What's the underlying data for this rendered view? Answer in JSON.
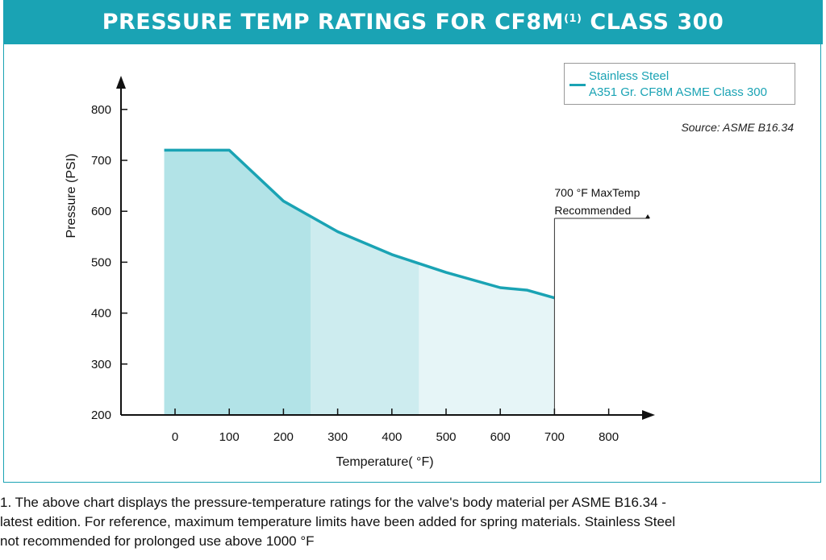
{
  "header": {
    "title_main": "PRESSURE TEMP RATINGS FOR CF8M",
    "title_sup": "(1)",
    "title_end": "CLASS 300"
  },
  "legend": {
    "line1": "Stainless Steel",
    "line2": "A351 Gr. CF8M ASME Class 300"
  },
  "source": "Source: ASME B16.34",
  "annotation": {
    "line1": "700 °F MaxTemp",
    "line2": "Recommended"
  },
  "footnote": {
    "line1": "1.   The above chart displays the pressure-temperature ratings for the valve's body material per ASME B16.34 -",
    "line2": "latest edition.  For reference, maximum temperature limits have been added for spring materials. Stainless Steel",
    "line3": "not recommended for prolonged use above 1000 °F"
  },
  "colors": {
    "accent": "#1aa3b4",
    "fill_dark": "#b2e3e7",
    "fill_mid": "#cdecef",
    "fill_light": "#e6f5f7"
  },
  "chart_data": {
    "type": "area",
    "xlabel": "Temperature( °F)",
    "ylabel": "Pressure (PSI)",
    "x_ticks": [
      0,
      100,
      200,
      300,
      400,
      500,
      600,
      700,
      800
    ],
    "y_ticks": [
      200,
      300,
      400,
      500,
      600,
      700,
      800
    ],
    "xlim": [
      -20,
      890
    ],
    "ylim": [
      200,
      860
    ],
    "series": [
      {
        "name": "Stainless Steel A351 Gr. CF8M ASME Class 300",
        "x": [
          -20,
          100,
          200,
          300,
          400,
          500,
          600,
          650,
          700
        ],
        "y": [
          720,
          720,
          620,
          560,
          515,
          480,
          450,
          445,
          430
        ]
      }
    ],
    "shaded_bands": [
      [
        -20,
        250
      ],
      [
        250,
        450
      ],
      [
        450,
        700
      ]
    ],
    "max_temp_marker": 700
  }
}
